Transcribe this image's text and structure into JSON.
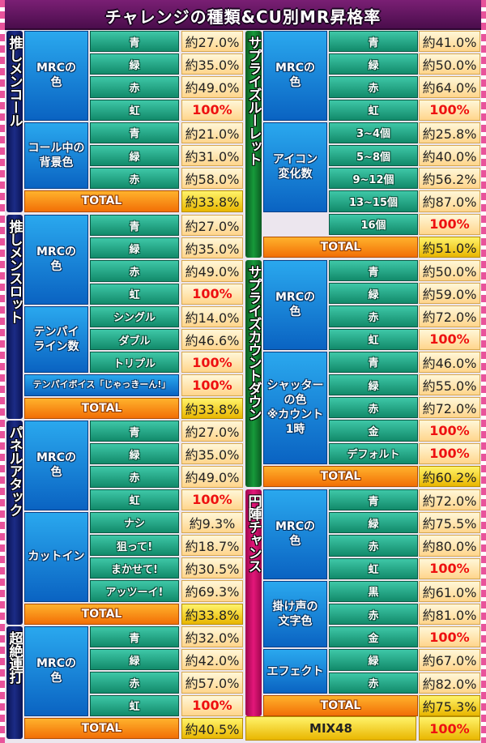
{
  "title": "チャレンジの種類&CU別MR昇格率",
  "sections": [
    {
      "label": "推しメンコール",
      "color": "navy",
      "groups": [
        {
          "label": "MRCの\n色",
          "rows": [
            {
              "label": "青",
              "value": "約27.0%"
            },
            {
              "label": "緑",
              "value": "約35.0%"
            },
            {
              "label": "赤",
              "value": "約49.0%"
            },
            {
              "label": "虹",
              "value": "100%"
            }
          ]
        },
        {
          "label": "コール中の\n背景色",
          "rows": [
            {
              "label": "青",
              "value": "約21.0%"
            },
            {
              "label": "緑",
              "value": "約31.0%"
            },
            {
              "label": "赤",
              "value": "約58.0%"
            }
          ]
        }
      ],
      "total": {
        "label": "TOTAL",
        "value": "約33.8%"
      }
    },
    {
      "label": "推しメンスロット",
      "color": "navy",
      "groups": [
        {
          "label": "MRCの\n色",
          "rows": [
            {
              "label": "青",
              "value": "約27.0%"
            },
            {
              "label": "緑",
              "value": "約35.0%"
            },
            {
              "label": "赤",
              "value": "約49.0%"
            },
            {
              "label": "虹",
              "value": "100%"
            }
          ]
        },
        {
          "label": "テンパイ\nライン数",
          "rows": [
            {
              "label": "シングル",
              "value": "約14.0%"
            },
            {
              "label": "ダブル",
              "value": "約46.6%"
            },
            {
              "label": "トリプル",
              "value": "100%"
            }
          ]
        },
        {
          "label": "テンパイボイス「じゃっきーん!」",
          "rows": [
            {
              "value": "100%"
            }
          ]
        }
      ],
      "total": {
        "label": "TOTAL",
        "value": "約33.8%"
      }
    },
    {
      "label": "パネルアタック",
      "color": "navy",
      "groups": [
        {
          "label": "MRCの\n色",
          "rows": [
            {
              "label": "青",
              "value": "約27.0%"
            },
            {
              "label": "緑",
              "value": "約35.0%"
            },
            {
              "label": "赤",
              "value": "約49.0%"
            },
            {
              "label": "虹",
              "value": "100%"
            }
          ]
        },
        {
          "label": "カットイン",
          "rows": [
            {
              "label": "ナシ",
              "value": "約9.3%"
            },
            {
              "label": "狙って!",
              "value": "約18.7%"
            },
            {
              "label": "まかせて!",
              "value": "約30.5%"
            },
            {
              "label": "アッツーイ!",
              "value": "約69.3%"
            }
          ]
        }
      ],
      "total": {
        "label": "TOTAL",
        "value": "約33.8%"
      }
    },
    {
      "label": "超絶連打",
      "color": "navy",
      "groups": [
        {
          "label": "MRCの\n色",
          "rows": [
            {
              "label": "青",
              "value": "約32.0%"
            },
            {
              "label": "緑",
              "value": "約42.0%"
            },
            {
              "label": "赤",
              "value": "約57.0%"
            },
            {
              "label": "虹",
              "value": "100%"
            }
          ]
        }
      ],
      "total": {
        "label": "TOTAL",
        "value": "約40.5%"
      }
    },
    {
      "label": "サプライズルーレット",
      "color": "green",
      "groups": [
        {
          "label": "MRCの\n色",
          "rows": [
            {
              "label": "青",
              "value": "約41.0%"
            },
            {
              "label": "緑",
              "value": "約50.0%"
            },
            {
              "label": "赤",
              "value": "約64.0%"
            },
            {
              "label": "虹",
              "value": "100%"
            }
          ]
        },
        {
          "label": "アイコン\n変化数",
          "rows": [
            {
              "label": "3~4個",
              "value": "約25.8%"
            },
            {
              "label": "5~8個",
              "value": "約40.0%"
            },
            {
              "label": "9~12個",
              "value": "約56.2%"
            },
            {
              "label": "13~15個",
              "value": "約87.0%"
            }
          ]
        },
        {
          "label": "",
          "rows": [
            {
              "label": "16個",
              "value": "100%"
            }
          ]
        }
      ],
      "total": {
        "label": "TOTAL",
        "value": "約51.0%"
      }
    },
    {
      "label": "サプライズカウントダウン",
      "color": "green",
      "groups": [
        {
          "label": "MRCの\n色",
          "rows": [
            {
              "label": "青",
              "value": "約50.0%"
            },
            {
              "label": "緑",
              "value": "約59.0%"
            },
            {
              "label": "赤",
              "value": "約72.0%"
            },
            {
              "label": "虹",
              "value": "100%"
            }
          ]
        },
        {
          "label": "シャッター\nの色\n※カウント\n1時",
          "rows": [
            {
              "label": "青",
              "value": "約46.0%"
            },
            {
              "label": "緑",
              "value": "約55.0%"
            },
            {
              "label": "赤",
              "value": "約72.0%"
            },
            {
              "label": "金",
              "value": "100%"
            },
            {
              "label": "デフォルト",
              "value": "100%"
            }
          ]
        }
      ],
      "total": {
        "label": "TOTAL",
        "value": "約60.2%"
      }
    },
    {
      "label": "円陣チャンス",
      "color": "magenta",
      "groups": [
        {
          "label": "MRCの\n色",
          "rows": [
            {
              "label": "青",
              "value": "約72.0%"
            },
            {
              "label": "緑",
              "value": "約75.5%"
            },
            {
              "label": "赤",
              "value": "約80.0%"
            },
            {
              "label": "虹",
              "value": "100%"
            }
          ]
        },
        {
          "label": "掛け声の\n文字色",
          "rows": [
            {
              "label": "黒",
              "value": "約61.0%"
            },
            {
              "label": "赤",
              "value": "約81.0%"
            },
            {
              "label": "金",
              "value": "100%"
            }
          ]
        },
        {
          "label": "エフェクト",
          "rows": [
            {
              "label": "緑",
              "value": "約67.0%"
            },
            {
              "label": "赤",
              "value": "約82.0%"
            }
          ]
        }
      ],
      "total": {
        "label": "TOTAL",
        "value": "約75.3%"
      }
    }
  ],
  "mix": {
    "label": "MIX48",
    "value": "100%"
  }
}
